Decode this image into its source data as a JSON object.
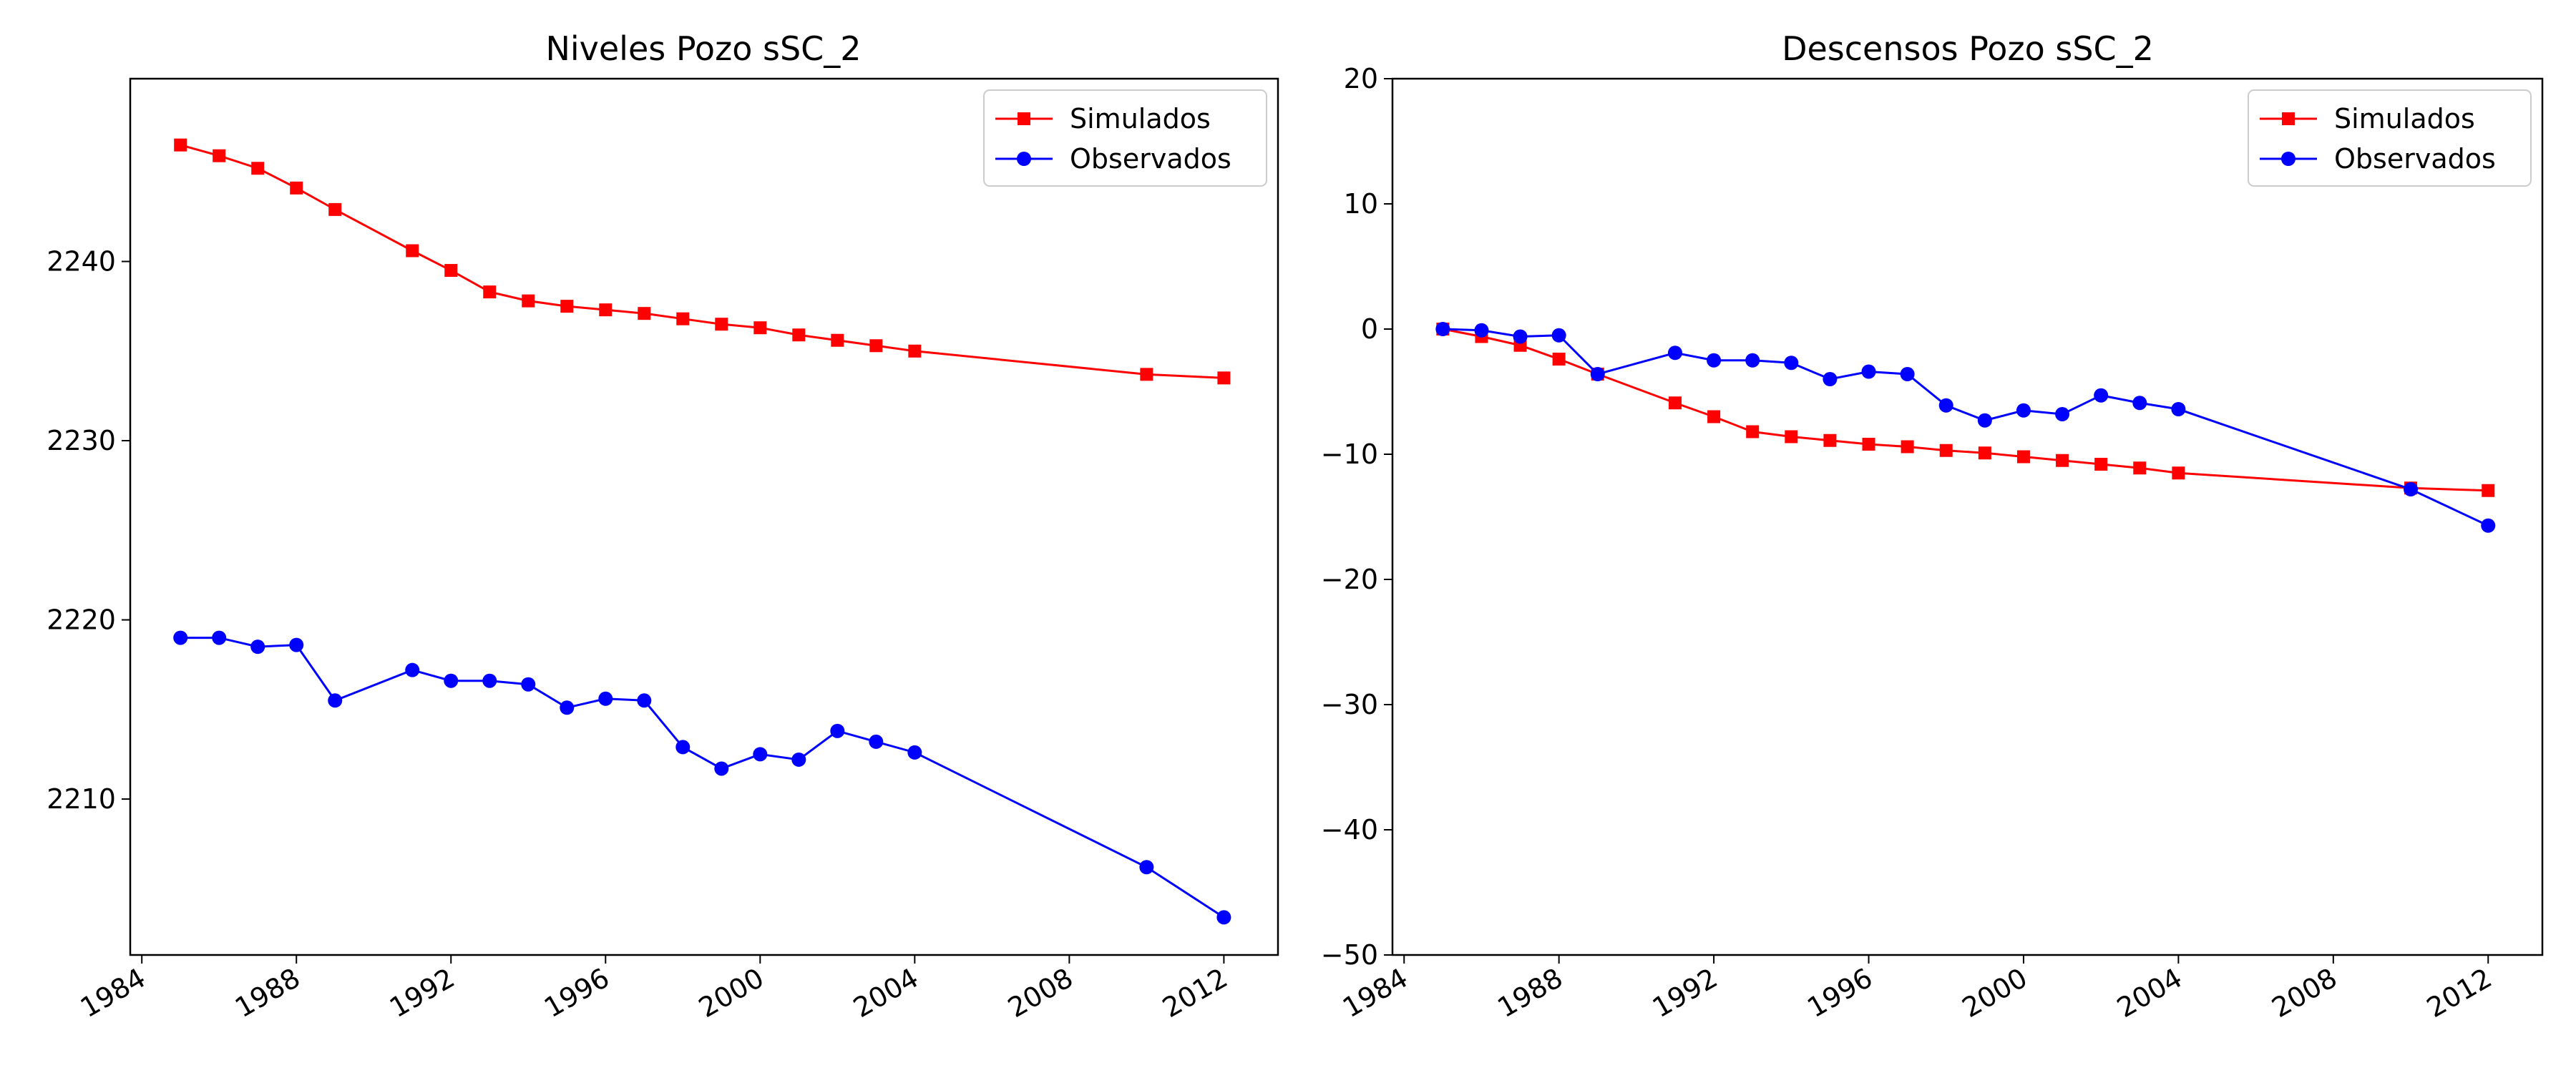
{
  "chart_data": [
    {
      "type": "line",
      "title": "Niveles Pozo sSC_2",
      "xlabel": "",
      "ylabel": "",
      "x_axis": "date",
      "xlim": [
        1983.7,
        2013.4
      ],
      "ylim": [
        2201.3,
        2250.2
      ],
      "x_ticks": [
        "1984",
        "1988",
        "1992",
        "1996",
        "2000",
        "2004",
        "2008",
        "2012"
      ],
      "y_ticks": [
        "2210",
        "2220",
        "2230",
        "2240"
      ],
      "legend_position": "upper right",
      "grid": false,
      "series": [
        {
          "name": "Simulados",
          "color": "#ff0000",
          "marker": "square",
          "points": [
            {
              "x": 1985,
              "y": 2246.5
            },
            {
              "x": 1986,
              "y": 2245.9
            },
            {
              "x": 1987,
              "y": 2245.2
            },
            {
              "x": 1988,
              "y": 2244.1
            },
            {
              "x": 1989,
              "y": 2242.9
            },
            {
              "x": 1991,
              "y": 2240.6
            },
            {
              "x": 1992,
              "y": 2239.5
            },
            {
              "x": 1993,
              "y": 2238.3
            },
            {
              "x": 1994,
              "y": 2237.8
            },
            {
              "x": 1995,
              "y": 2237.5
            },
            {
              "x": 1996,
              "y": 2237.3
            },
            {
              "x": 1997,
              "y": 2237.1
            },
            {
              "x": 1998,
              "y": 2236.8
            },
            {
              "x": 1999,
              "y": 2236.5
            },
            {
              "x": 2000,
              "y": 2236.3
            },
            {
              "x": 2001,
              "y": 2235.9
            },
            {
              "x": 2002,
              "y": 2235.6
            },
            {
              "x": 2003,
              "y": 2235.3
            },
            {
              "x": 2004,
              "y": 2235.0
            },
            {
              "x": 2010,
              "y": 2233.7
            },
            {
              "x": 2012,
              "y": 2233.5
            }
          ]
        },
        {
          "name": "Observados",
          "color": "#0000ff",
          "marker": "circle",
          "points": [
            {
              "x": 1985,
              "y": 2219.0
            },
            {
              "x": 1986,
              "y": 2219.0
            },
            {
              "x": 1987,
              "y": 2218.5
            },
            {
              "x": 1988,
              "y": 2218.6
            },
            {
              "x": 1989,
              "y": 2215.5
            },
            {
              "x": 1991,
              "y": 2217.2
            },
            {
              "x": 1992,
              "y": 2216.6
            },
            {
              "x": 1993,
              "y": 2216.6
            },
            {
              "x": 1994,
              "y": 2216.4
            },
            {
              "x": 1995,
              "y": 2215.1
            },
            {
              "x": 1996,
              "y": 2215.6
            },
            {
              "x": 1997,
              "y": 2215.5
            },
            {
              "x": 1998,
              "y": 2212.9
            },
            {
              "x": 1999,
              "y": 2211.7
            },
            {
              "x": 2000,
              "y": 2212.5
            },
            {
              "x": 2001,
              "y": 2212.2
            },
            {
              "x": 2002,
              "y": 2213.8
            },
            {
              "x": 2003,
              "y": 2213.2
            },
            {
              "x": 2004,
              "y": 2212.6
            },
            {
              "x": 2010,
              "y": 2206.2
            },
            {
              "x": 2012,
              "y": 2203.4
            }
          ]
        }
      ]
    },
    {
      "type": "line",
      "title": "Descensos Pozo sSC_2",
      "xlabel": "",
      "ylabel": "",
      "x_axis": "date",
      "xlim": [
        1983.7,
        2013.4
      ],
      "ylim": [
        -50,
        20
      ],
      "x_ticks": [
        "1984",
        "1988",
        "1992",
        "1996",
        "2000",
        "2004",
        "2008",
        "2012"
      ],
      "y_ticks": [
        "−50",
        "−40",
        "−30",
        "−20",
        "−10",
        "0",
        "10",
        "20"
      ],
      "legend_position": "upper right",
      "grid": false,
      "series": [
        {
          "name": "Simulados",
          "color": "#ff0000",
          "marker": "square",
          "points": [
            {
              "x": 1985,
              "y": 0.0
            },
            {
              "x": 1986,
              "y": -0.6
            },
            {
              "x": 1987,
              "y": -1.3
            },
            {
              "x": 1988,
              "y": -2.4
            },
            {
              "x": 1989,
              "y": -3.6
            },
            {
              "x": 1991,
              "y": -5.9
            },
            {
              "x": 1992,
              "y": -7.0
            },
            {
              "x": 1993,
              "y": -8.2
            },
            {
              "x": 1994,
              "y": -8.6
            },
            {
              "x": 1995,
              "y": -8.9
            },
            {
              "x": 1996,
              "y": -9.2
            },
            {
              "x": 1997,
              "y": -9.4
            },
            {
              "x": 1998,
              "y": -9.7
            },
            {
              "x": 1999,
              "y": -9.9
            },
            {
              "x": 2000,
              "y": -10.2
            },
            {
              "x": 2001,
              "y": -10.5
            },
            {
              "x": 2002,
              "y": -10.8
            },
            {
              "x": 2003,
              "y": -11.1
            },
            {
              "x": 2004,
              "y": -11.5
            },
            {
              "x": 2010,
              "y": -12.7
            },
            {
              "x": 2012,
              "y": -12.9
            }
          ]
        },
        {
          "name": "Observados",
          "color": "#0000ff",
          "marker": "circle",
          "points": [
            {
              "x": 1985,
              "y": 0.0
            },
            {
              "x": 1986,
              "y": -0.1
            },
            {
              "x": 1987,
              "y": -0.6
            },
            {
              "x": 1988,
              "y": -0.5
            },
            {
              "x": 1989,
              "y": -3.6
            },
            {
              "x": 1991,
              "y": -1.9
            },
            {
              "x": 1992,
              "y": -2.5
            },
            {
              "x": 1993,
              "y": -2.5
            },
            {
              "x": 1994,
              "y": -2.7
            },
            {
              "x": 1995,
              "y": -4.0
            },
            {
              "x": 1996,
              "y": -3.4
            },
            {
              "x": 1997,
              "y": -3.6
            },
            {
              "x": 1998,
              "y": -6.1
            },
            {
              "x": 1999,
              "y": -7.3
            },
            {
              "x": 2000,
              "y": -6.5
            },
            {
              "x": 2001,
              "y": -6.8
            },
            {
              "x": 2002,
              "y": -5.3
            },
            {
              "x": 2003,
              "y": -5.9
            },
            {
              "x": 2004,
              "y": -6.4
            },
            {
              "x": 2010,
              "y": -12.8
            },
            {
              "x": 2012,
              "y": -15.7
            }
          ]
        }
      ]
    }
  ]
}
